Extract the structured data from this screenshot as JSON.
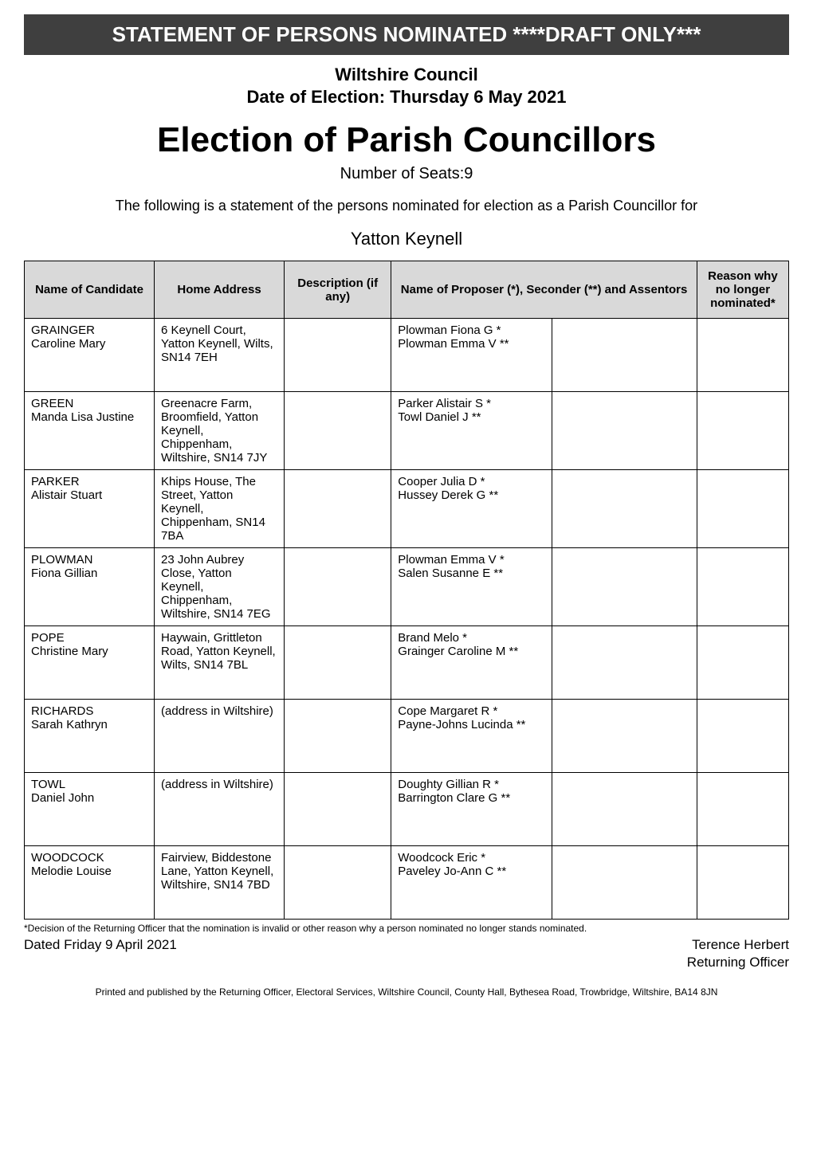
{
  "banner": "STATEMENT OF PERSONS NOMINATED ****DRAFT ONLY***",
  "council": "Wiltshire Council",
  "election_date_line": "Date of Election: Thursday 6 May 2021",
  "main_title": "Election of Parish Councillors",
  "seats_line": "Number of Seats:9",
  "intro_line": "The following is a statement of the persons nominated for election as a Parish Councillor for",
  "area_name": "Yatton Keynell",
  "table": {
    "headers": {
      "name": "Name of Candidate",
      "address": "Home Address",
      "description": "Description (if any)",
      "proposer": "Name of Proposer (*), Seconder (**) and Assentors",
      "reason": "Reason why no longer nominated*"
    },
    "col_widths_pct": [
      17,
      17,
      14,
      21,
      19,
      12
    ],
    "header_bg": "#d9d9d9",
    "border_color": "#000000",
    "font_size_pt": 11,
    "rows": [
      {
        "name": "GRAINGER\nCaroline Mary",
        "address": "6 Keynell Court, Yatton Keynell, Wilts, SN14 7EH",
        "description": "",
        "proposer_a": "Plowman Fiona G *\nPlowman Emma V **",
        "proposer_b": "",
        "reason": ""
      },
      {
        "name": "GREEN\nManda Lisa Justine",
        "address": "Greenacre Farm, Broomfield, Yatton Keynell, Chippenham, Wiltshire, SN14 7JY",
        "description": "",
        "proposer_a": "Parker Alistair S *\nTowl Daniel J **",
        "proposer_b": "",
        "reason": ""
      },
      {
        "name": "PARKER\nAlistair Stuart",
        "address": "Khips House, The Street, Yatton Keynell, Chippenham, SN14 7BA",
        "description": "",
        "proposer_a": "Cooper Julia D *\nHussey Derek G **",
        "proposer_b": "",
        "reason": ""
      },
      {
        "name": "PLOWMAN\nFiona Gillian",
        "address": "23 John Aubrey Close, Yatton Keynell, Chippenham, Wiltshire, SN14 7EG",
        "description": "",
        "proposer_a": "Plowman Emma V *\nSalen Susanne E **",
        "proposer_b": "",
        "reason": ""
      },
      {
        "name": "POPE\nChristine Mary",
        "address": "Haywain, Grittleton Road, Yatton Keynell, Wilts, SN14 7BL",
        "description": "",
        "proposer_a": "Brand Melo *\nGrainger Caroline M **",
        "proposer_b": "",
        "reason": ""
      },
      {
        "name": "RICHARDS\nSarah Kathryn",
        "address": "(address in Wiltshire)",
        "description": "",
        "proposer_a": "Cope Margaret R *\nPayne-Johns Lucinda **",
        "proposer_b": "",
        "reason": ""
      },
      {
        "name": "TOWL\nDaniel John",
        "address": "(address in Wiltshire)",
        "description": "",
        "proposer_a": "Doughty Gillian R *\nBarrington Clare G **",
        "proposer_b": "",
        "reason": ""
      },
      {
        "name": "WOODCOCK\nMelodie Louise",
        "address": "Fairview, Biddestone Lane, Yatton Keynell, Wiltshire, SN14 7BD",
        "description": "",
        "proposer_a": "Woodcock Eric *\nPaveley Jo-Ann C **",
        "proposer_b": "",
        "reason": ""
      }
    ]
  },
  "footnote": "*Decision of the Returning Officer that the nomination is invalid or other reason why a person nominated no longer stands nominated.",
  "dated_line": "Dated Friday 9 April 2021",
  "signed_name": "Terence Herbert",
  "signed_role": "Returning Officer",
  "print_line": "Printed and published by the Returning Officer, Electoral Services, Wiltshire Council, County Hall, Bythesea Road, Trowbridge, Wiltshire, BA14 8JN",
  "colors": {
    "banner_bg": "#3f3f3f",
    "banner_fg": "#ffffff",
    "page_bg": "#ffffff",
    "text": "#000000"
  }
}
